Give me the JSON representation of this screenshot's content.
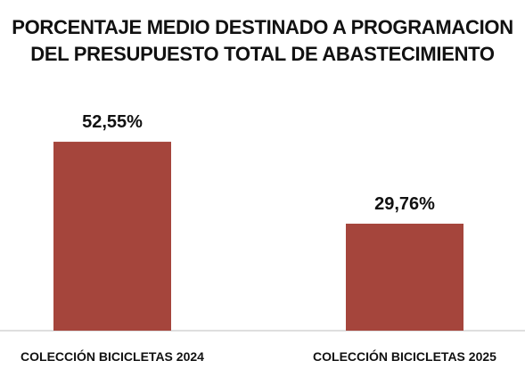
{
  "chart_data": {
    "type": "bar",
    "title_lines": [
      "PORCENTAJE MEDIO DESTINADO A PROGRAMACION",
      "DEL PRESUPUESTO TOTAL DE ABASTECIMIENTO"
    ],
    "categories": [
      "COLECCIÓN BICICLETAS 2024",
      "COLECCIÓN BICICLETAS 2025"
    ],
    "values": [
      52.55,
      29.76
    ],
    "data_labels": [
      "52,55%",
      "29,76%"
    ],
    "unit": "%",
    "ylim": [
      0,
      60
    ],
    "grid": false,
    "legend": "none",
    "colors": {
      "bar": "#a5453c",
      "text": "#111111",
      "axis": "#bfbfbf"
    }
  }
}
